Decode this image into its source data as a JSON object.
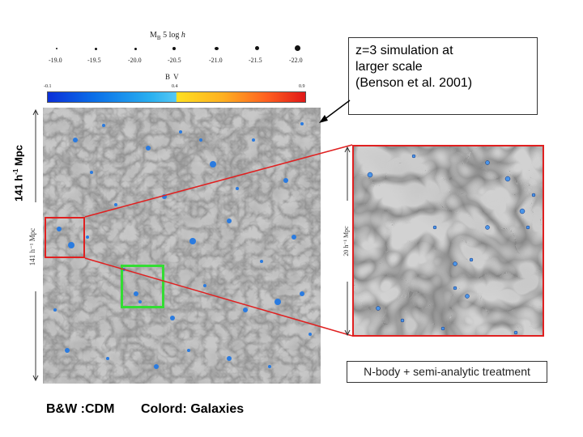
{
  "legend": {
    "mag_title": "M",
    "mag_title_sub": "B",
    "mag_title_rest": " 5 log ",
    "mag_title_h": "h",
    "mag_ticks": [
      "-19.0",
      "-19.5",
      "-20.0",
      "-20.5",
      "-21.0",
      "-21.5",
      "-22.0"
    ],
    "bv_title": "B V",
    "bv_ticks": [
      "-0.1",
      "0.4",
      "0.9"
    ]
  },
  "main_panel": {
    "side_label_main": "141 h",
    "side_label_sup": "-1",
    "side_label_unit": " Mpc",
    "inner_axis_label": "141 h⁻¹ Mpc"
  },
  "zoom_panel": {
    "axis_label": "20 h⁻¹ Mpc"
  },
  "callout": {
    "lines": [
      "z=3 simulation at",
      "larger scale",
      "(Benson et al. 2001)"
    ]
  },
  "nbody_caption": "N-body + semi-analytic treatment",
  "bottom_labels": {
    "bw": "B&W :CDM",
    "colored": "Colord: Galaxies"
  },
  "colors": {
    "highlight_red": "#e02020",
    "highlight_green": "#33dd33",
    "galaxy_blue": "#2a7be0",
    "arrow": "#000000"
  }
}
